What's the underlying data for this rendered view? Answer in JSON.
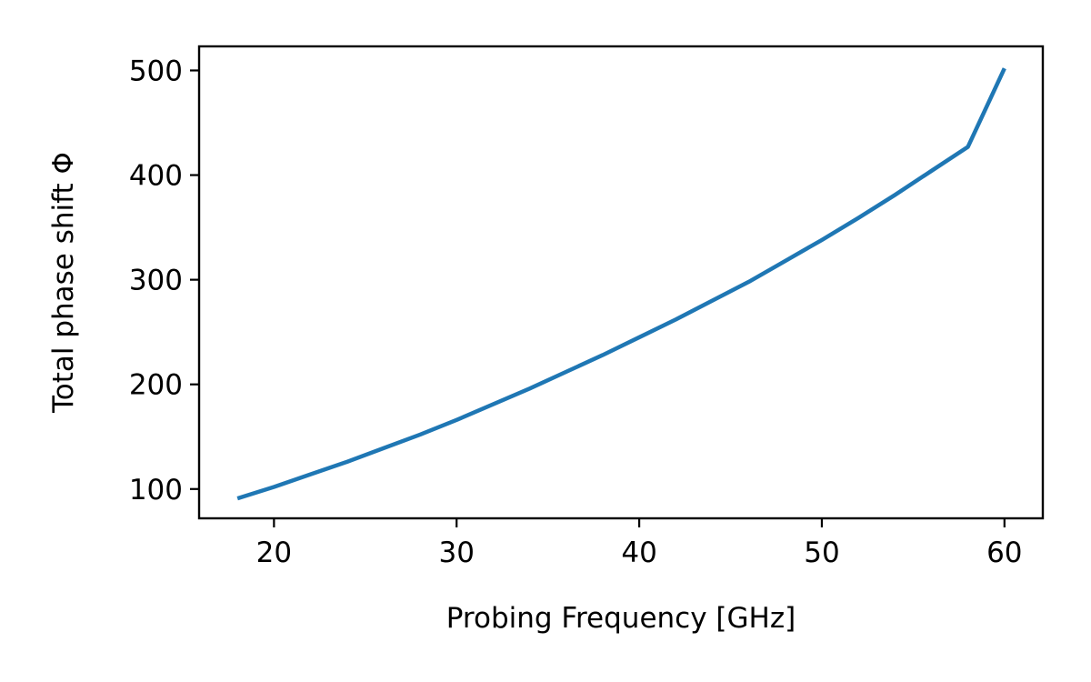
{
  "chart_data": {
    "type": "line",
    "title": "",
    "xlabel": "Probing Frequency [GHz]",
    "ylabel": "Total phase shift Φ",
    "xlim": [
      15.9,
      62.1
    ],
    "ylim": [
      72,
      523
    ],
    "xticks": [
      20,
      30,
      40,
      50,
      60
    ],
    "yticks": [
      100,
      200,
      300,
      400,
      500
    ],
    "xtick_labels": [
      "20",
      "30",
      "40",
      "50",
      "60"
    ],
    "ytick_labels": [
      "100",
      "200",
      "300",
      "400",
      "500"
    ],
    "grid": false,
    "legend": "none",
    "series": [
      {
        "color": "#1f77b4",
        "x": [
          18,
          20,
          22,
          24,
          26,
          28,
          30,
          32,
          34,
          36,
          38,
          40,
          42,
          44,
          46,
          48,
          50,
          52,
          54,
          56,
          58,
          60
        ],
        "y": [
          91,
          102,
          114,
          126,
          139,
          152,
          166,
          181,
          196,
          212,
          228,
          245,
          262,
          280,
          298,
          318,
          338,
          359,
          381,
          404,
          427,
          502
        ]
      }
    ]
  }
}
